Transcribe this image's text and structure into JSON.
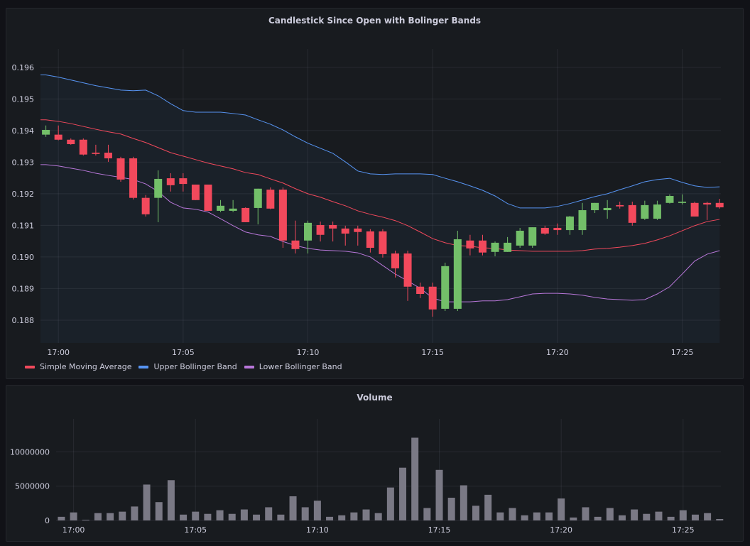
{
  "candle_panel": {
    "title": "Candlestick Since Open with Bolinger Bands",
    "legend": [
      {
        "label": "Simple Moving Average",
        "color": "#f2495c"
      },
      {
        "label": "Upper Bollinger Band",
        "color": "#5794f2"
      },
      {
        "label": "Lower Bollinger Band",
        "color": "#b877d9"
      }
    ]
  },
  "volume_panel": {
    "title": "Volume"
  },
  "chart_data": [
    {
      "type": "candlestick",
      "title": "Candlestick Since Open with Bolinger Bands",
      "xlim": [
        "16:59:17",
        "17:26:33"
      ],
      "ylim": [
        0.18728,
        0.19658
      ],
      "x_ticks": [
        "17:00",
        "17:05",
        "17:10",
        "17:15",
        "17:20",
        "17:25"
      ],
      "y_ticks": [
        "0.188",
        "0.189",
        "0.190",
        "0.191",
        "0.192",
        "0.193",
        "0.194",
        "0.195",
        "0.196"
      ],
      "grid": true,
      "legend_position": "bottom-left",
      "colors": {
        "up": "#73bf69",
        "down": "#f2495c",
        "band_fill": "#5794f2"
      },
      "time": [
        "16:59:30",
        "17:00:00",
        "17:00:30",
        "17:01:00",
        "17:01:30",
        "17:02:00",
        "17:02:30",
        "17:03:00",
        "17:03:30",
        "17:04:00",
        "17:04:30",
        "17:05:00",
        "17:05:30",
        "17:06:00",
        "17:06:30",
        "17:07:00",
        "17:07:30",
        "17:08:00",
        "17:08:30",
        "17:09:00",
        "17:09:30",
        "17:10:00",
        "17:10:30",
        "17:11:00",
        "17:11:30",
        "17:12:00",
        "17:12:30",
        "17:13:00",
        "17:13:30",
        "17:14:00",
        "17:14:30",
        "17:15:00",
        "17:15:30",
        "17:16:00",
        "17:16:30",
        "17:17:00",
        "17:17:30",
        "17:18:00",
        "17:18:30",
        "17:19:00",
        "17:19:30",
        "17:20:00",
        "17:20:30",
        "17:21:00",
        "17:21:30",
        "17:22:00",
        "17:22:30",
        "17:23:00",
        "17:23:30",
        "17:24:00",
        "17:24:30",
        "17:25:00",
        "17:25:30",
        "17:26:00",
        "17:26:30"
      ],
      "open": [
        0.19387,
        0.19387,
        0.19371,
        0.19371,
        0.1933,
        0.1933,
        0.19312,
        0.19312,
        0.19187,
        0.19187,
        0.19249,
        0.19249,
        0.19229,
        0.19229,
        0.19146,
        0.19146,
        0.19155,
        0.19155,
        0.19213,
        0.19213,
        0.19052,
        0.19052,
        0.19101,
        0.19101,
        0.1909,
        0.1909,
        0.19081,
        0.19081,
        0.19011,
        0.19011,
        0.18906,
        0.18906,
        0.18836,
        0.18836,
        0.19052,
        0.19052,
        0.19016,
        0.19016,
        0.19036,
        0.19036,
        0.19092,
        0.19092,
        0.19085,
        0.19085,
        0.19148,
        0.19148,
        0.19164,
        0.19164,
        0.19121,
        0.19121,
        0.19171,
        0.19171,
        0.19171,
        0.19171,
        0.19171
      ],
      "high": [
        0.19416,
        0.19416,
        0.19375,
        0.19375,
        0.19355,
        0.19355,
        0.19317,
        0.19317,
        0.19196,
        0.19274,
        0.19265,
        0.19265,
        0.19229,
        0.19229,
        0.1918,
        0.1918,
        0.19157,
        0.19216,
        0.1922,
        0.1922,
        0.19115,
        0.19115,
        0.19112,
        0.19112,
        0.19099,
        0.19099,
        0.19088,
        0.19088,
        0.1902,
        0.1902,
        0.18919,
        0.18919,
        0.18982,
        0.19083,
        0.1907,
        0.1907,
        0.19049,
        0.19063,
        0.19092,
        0.19094,
        0.19099,
        0.19106,
        0.1913,
        0.19171,
        0.19171,
        0.1918,
        0.19175,
        0.19175,
        0.19178,
        0.19178,
        0.19198,
        0.19198,
        0.19175,
        0.19175,
        0.19184
      ],
      "low": [
        0.1938,
        0.19369,
        0.19355,
        0.19321,
        0.19321,
        0.19301,
        0.19238,
        0.19182,
        0.19128,
        0.1911,
        0.19207,
        0.19207,
        0.1918,
        0.19146,
        0.19142,
        0.19142,
        0.1911,
        0.19103,
        0.19151,
        0.19029,
        0.19011,
        0.19011,
        0.19049,
        0.19049,
        0.19036,
        0.19036,
        0.19014,
        0.18998,
        0.18935,
        0.18861,
        0.1887,
        0.18811,
        0.18829,
        0.18829,
        0.19005,
        0.19005,
        0.19002,
        0.19016,
        0.19029,
        0.19029,
        0.1907,
        0.1907,
        0.1907,
        0.1907,
        0.19139,
        0.19121,
        0.19153,
        0.19099,
        0.19117,
        0.19117,
        0.19169,
        0.19166,
        0.19128,
        0.19117,
        0.19153
      ],
      "close": [
        0.19402,
        0.19371,
        0.19357,
        0.19324,
        0.19326,
        0.19312,
        0.19245,
        0.19187,
        0.19135,
        0.19247,
        0.19227,
        0.19231,
        0.1918,
        0.19146,
        0.19162,
        0.19153,
        0.1911,
        0.19216,
        0.19153,
        0.19052,
        0.19025,
        0.19108,
        0.1907,
        0.1909,
        0.19074,
        0.19079,
        0.19029,
        0.19009,
        0.18964,
        0.18906,
        0.18883,
        0.18834,
        0.18971,
        0.19056,
        0.19027,
        0.19014,
        0.19045,
        0.19045,
        0.19083,
        0.19094,
        0.19074,
        0.19085,
        0.19128,
        0.19148,
        0.19171,
        0.19155,
        0.1916,
        0.19108,
        0.19164,
        0.19166,
        0.19193,
        0.19175,
        0.19128,
        0.19166,
        0.19157
      ],
      "series": [
        {
          "name": "Simple Moving Average",
          "color": "#f2495c",
          "values": [
            0.19434,
            0.19429,
            0.19422,
            0.19413,
            0.19404,
            0.19396,
            0.19389,
            0.19375,
            0.19362,
            0.19346,
            0.1933,
            0.19319,
            0.19308,
            0.19297,
            0.19288,
            0.19279,
            0.19267,
            0.19261,
            0.19247,
            0.19234,
            0.19216,
            0.192,
            0.19189,
            0.19175,
            0.19162,
            0.19146,
            0.19135,
            0.19126,
            0.19115,
            0.19099,
            0.19079,
            0.19058,
            0.19045,
            0.19036,
            0.19034,
            0.19029,
            0.19027,
            0.19022,
            0.1902,
            0.19018,
            0.19018,
            0.19018,
            0.19018,
            0.1902,
            0.19025,
            0.19027,
            0.19031,
            0.19036,
            0.19043,
            0.19054,
            0.19067,
            0.19083,
            0.19099,
            0.19112,
            0.19119
          ]
        },
        {
          "name": "Upper Bollinger Band",
          "color": "#5794f2",
          "values": [
            0.19576,
            0.19569,
            0.1956,
            0.19551,
            0.19542,
            0.19535,
            0.19528,
            0.19526,
            0.19528,
            0.1951,
            0.19485,
            0.19463,
            0.19458,
            0.19458,
            0.19458,
            0.19454,
            0.19449,
            0.19434,
            0.1942,
            0.19402,
            0.1938,
            0.1936,
            0.19344,
            0.19328,
            0.19301,
            0.19272,
            0.19263,
            0.19261,
            0.19263,
            0.19263,
            0.19263,
            0.19261,
            0.19249,
            0.19238,
            0.19225,
            0.19211,
            0.19193,
            0.19169,
            0.19155,
            0.19155,
            0.19155,
            0.1916,
            0.19169,
            0.1918,
            0.19191,
            0.192,
            0.19213,
            0.19225,
            0.19238,
            0.19245,
            0.19249,
            0.19236,
            0.19225,
            0.1922,
            0.19222
          ]
        },
        {
          "name": "Lower Bollinger Band",
          "color": "#b877d9",
          "values": [
            0.19292,
            0.19288,
            0.19281,
            0.19274,
            0.19265,
            0.19258,
            0.19252,
            0.19245,
            0.19231,
            0.19207,
            0.19173,
            0.19155,
            0.19151,
            0.19142,
            0.19121,
            0.19099,
            0.19079,
            0.1907,
            0.19065,
            0.19049,
            0.19036,
            0.19027,
            0.19022,
            0.1902,
            0.19018,
            0.19013,
            0.19,
            0.18973,
            0.18946,
            0.18924,
            0.18901,
            0.1887,
            0.18858,
            0.18858,
            0.18858,
            0.18861,
            0.18861,
            0.18865,
            0.18874,
            0.18883,
            0.18885,
            0.18885,
            0.18883,
            0.18879,
            0.18872,
            0.18867,
            0.18865,
            0.18863,
            0.18865,
            0.18883,
            0.18906,
            0.18946,
            0.18987,
            0.19009,
            0.1902
          ]
        }
      ]
    },
    {
      "type": "bar",
      "title": "Volume",
      "xlim": [
        "16:59:17",
        "17:26:33"
      ],
      "ylim": [
        0,
        14800000
      ],
      "x_ticks": [
        "17:00",
        "17:05",
        "17:10",
        "17:15",
        "17:20",
        "17:25"
      ],
      "y_ticks": [
        "0",
        "5000000",
        "10000000"
      ],
      "grid": true,
      "color": "#7a7985",
      "values": [
        530000,
        1170000,
        100000,
        1070000,
        1070000,
        1280000,
        2030000,
        5230000,
        2670000,
        5870000,
        850000,
        1280000,
        960000,
        1490000,
        960000,
        1600000,
        850000,
        1920000,
        850000,
        3520000,
        1920000,
        2880000,
        530000,
        750000,
        1170000,
        1600000,
        1070000,
        4800000,
        7690000,
        12060000,
        1810000,
        7370000,
        3310000,
        5120000,
        2140000,
        3740000,
        1170000,
        1810000,
        750000,
        1170000,
        1170000,
        3200000,
        430000,
        1920000,
        530000,
        1810000,
        750000,
        1600000,
        960000,
        1280000,
        530000,
        1490000,
        850000,
        1070000,
        210000
      ]
    }
  ]
}
